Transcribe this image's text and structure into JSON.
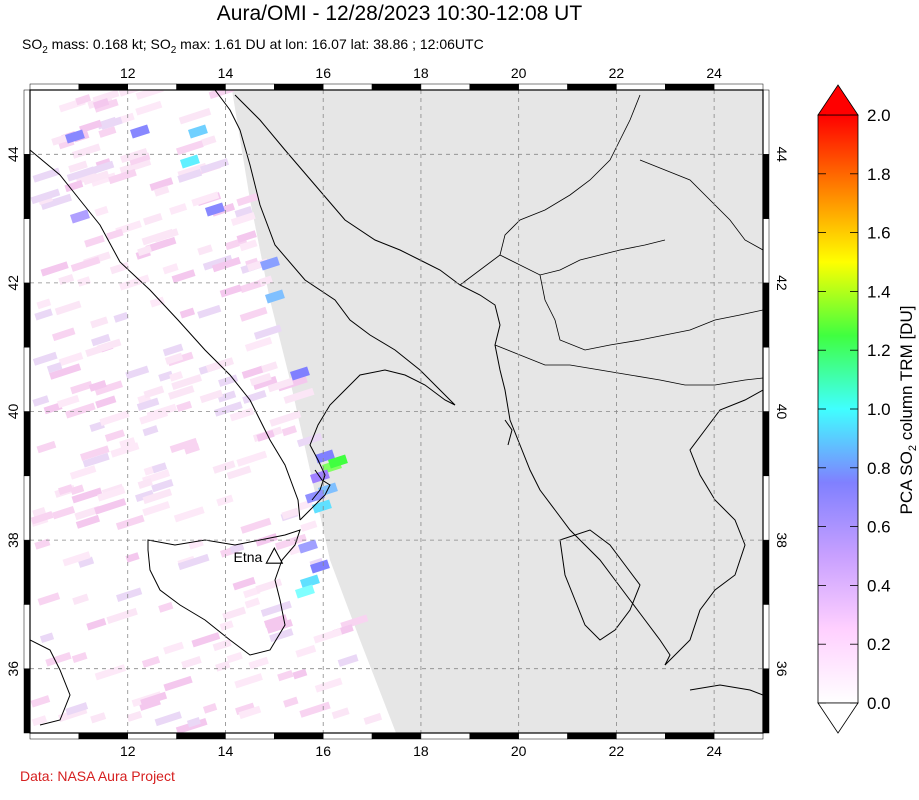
{
  "title": "Aura/OMI - 12/28/2023 10:30-12:08 UT",
  "subtitle": {
    "mass_prefix": "SO",
    "mass_sub": "2",
    "mass_text": " mass: 0.168 kt; SO",
    "max_sub": "2",
    "max_text": " max: 1.61 DU at lon: 16.07 lat: 38.86 ; 12:06UTC"
  },
  "credit": "Data: NASA Aura Project",
  "map": {
    "lon_range": [
      10,
      25
    ],
    "lat_range": [
      35,
      45
    ],
    "lon_ticks": [
      "12",
      "14",
      "16",
      "18",
      "20",
      "22",
      "24"
    ],
    "lat_ticks": [
      "36",
      "38",
      "40",
      "42",
      "44"
    ],
    "swath_gap_color": "#e6e6e6",
    "land_outline_color": "#000000",
    "grid": "dashed"
  },
  "volcano": {
    "label": "Etna",
    "lon": 15.0,
    "lat": 37.75,
    "marker": "triangle-icon"
  },
  "colorbar": {
    "label_prefix": "PCA SO",
    "label_sub": "2",
    "label_suffix": " column TRM [DU]",
    "ticks": [
      "0.0",
      "0.2",
      "0.4",
      "0.6",
      "0.8",
      "1.0",
      "1.2",
      "1.4",
      "1.6",
      "1.8",
      "2.0"
    ],
    "range": [
      0,
      2
    ],
    "colors": [
      "#ffffff",
      "#ffd0ff",
      "#c8a0ff",
      "#8080ff",
      "#40ffff",
      "#40ff40",
      "#ffff00",
      "#ff8000",
      "#ff0000"
    ]
  }
}
